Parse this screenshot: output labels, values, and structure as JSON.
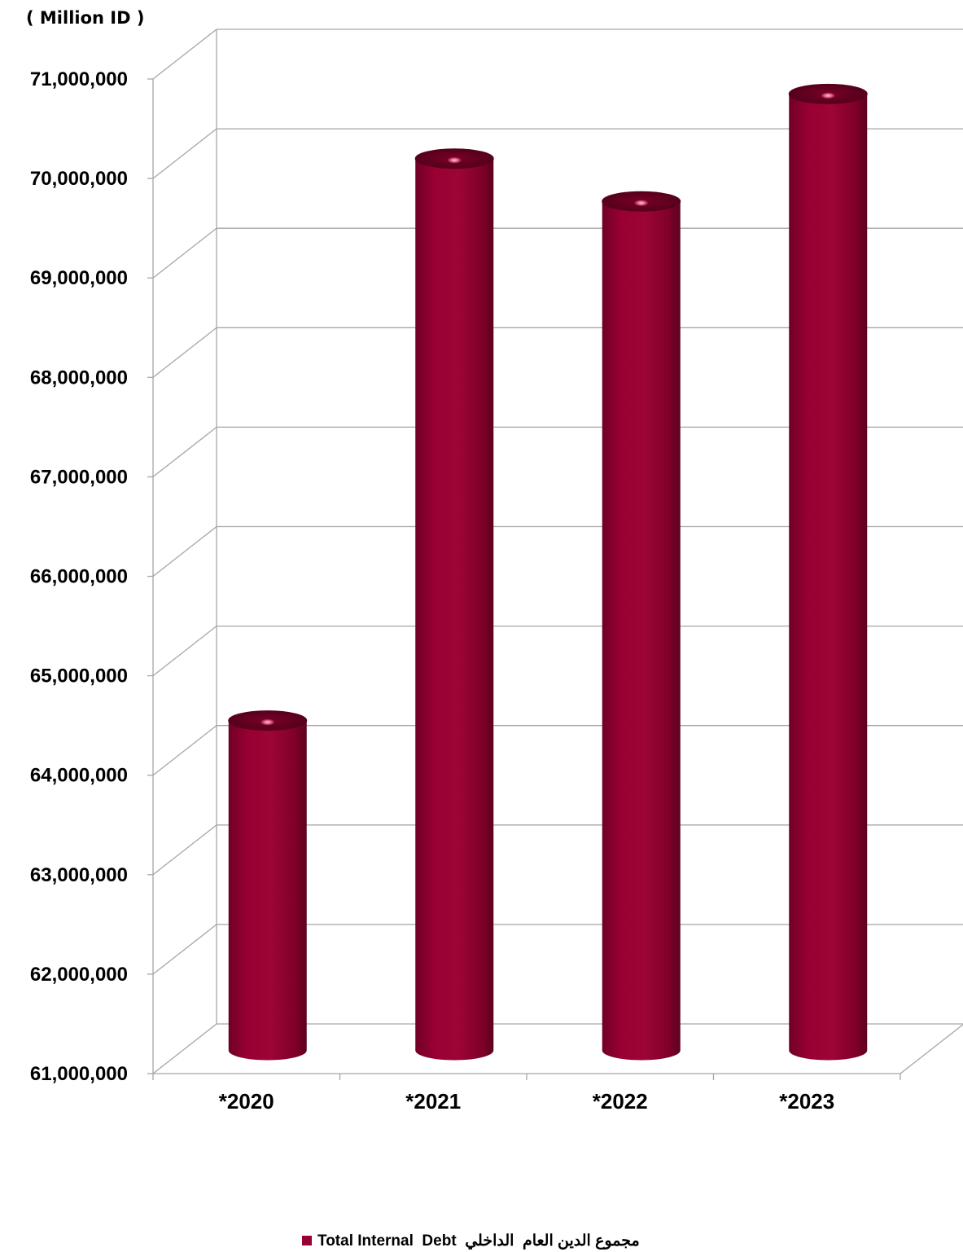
{
  "unit_label": "( Million ID )",
  "legend": {
    "label": "Total Internal  Debt  مجموع الدين العام  الداخلي"
  },
  "colors": {
    "bar": "#990033",
    "bar_dark": "#4d0019",
    "grid": "#a6a6a6",
    "axis_text": "#000000"
  },
  "chart_data": {
    "type": "bar",
    "categories": [
      "*2020",
      "*2021",
      "*2022",
      "*2023"
    ],
    "series": [
      {
        "name": "Total Internal  Debt  مجموع الدين العام  الداخلي",
        "values": [
          64300000,
          69950000,
          69520000,
          70600000
        ]
      }
    ],
    "ylim": [
      61000000,
      71000000
    ],
    "yticks": [
      61000000,
      62000000,
      63000000,
      64000000,
      65000000,
      66000000,
      67000000,
      68000000,
      69000000,
      70000000,
      71000000
    ],
    "ytick_labels": [
      "61,000,000",
      "62,000,000",
      "63,000,000",
      "64,000,000",
      "65,000,000",
      "66,000,000",
      "67,000,000",
      "68,000,000",
      "69,000,000",
      "70,000,000",
      "71,000,000"
    ],
    "grid": true,
    "legend_position": "bottom",
    "style": "3d-cylinder"
  }
}
